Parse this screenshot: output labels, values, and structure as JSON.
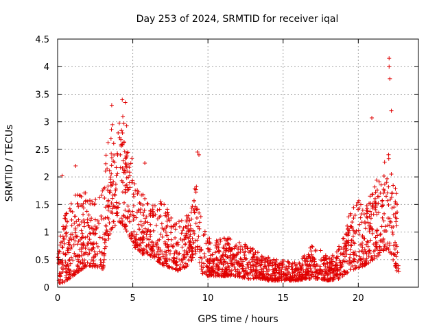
{
  "chart_data": {
    "type": "scatter",
    "title": "Day 253 of 2024, SRMTID for receiver iqal",
    "xlabel": "GPS time / hours",
    "ylabel": "SRMTID / TECUs",
    "xlim": [
      0,
      24
    ],
    "ylim": [
      0,
      4.5
    ],
    "xticks": [
      0,
      5,
      10,
      15,
      20
    ],
    "xtick_labels": [
      "0",
      "5",
      "10",
      "15",
      "20"
    ],
    "yticks": [
      0,
      0.5,
      1,
      1.5,
      2,
      2.5,
      3,
      3.5,
      4,
      4.5
    ],
    "ytick_labels": [
      "0",
      "0.5",
      "1",
      "1.5",
      "2",
      "2.5",
      "3",
      "3.5",
      "4",
      "4.5"
    ],
    "grid": true,
    "marker": "+",
    "color": "#e00000",
    "data_extent_hours": [
      0,
      22.7
    ],
    "notable_points": [
      {
        "x": 22.05,
        "y": 4.15
      },
      {
        "x": 22.05,
        "y": 4.0
      },
      {
        "x": 22.1,
        "y": 3.78
      },
      {
        "x": 4.3,
        "y": 3.4
      },
      {
        "x": 4.5,
        "y": 3.35
      },
      {
        "x": 3.6,
        "y": 3.3
      },
      {
        "x": 20.9,
        "y": 3.07
      },
      {
        "x": 22.2,
        "y": 3.2
      },
      {
        "x": 9.3,
        "y": 2.45
      },
      {
        "x": 9.4,
        "y": 2.4
      },
      {
        "x": 1.2,
        "y": 2.2
      },
      {
        "x": 0.3,
        "y": 2.02
      },
      {
        "x": 5.8,
        "y": 2.25
      }
    ],
    "envelope": {
      "hours": [
        0.0,
        0.5,
        1.0,
        1.5,
        2.0,
        2.5,
        3.0,
        3.3,
        3.6,
        4.0,
        4.4,
        4.8,
        5.2,
        5.6,
        6.0,
        6.5,
        7.0,
        7.5,
        8.0,
        8.5,
        9.0,
        9.3,
        9.6,
        10.0,
        10.5,
        11.0,
        11.5,
        12.0,
        12.5,
        13.0,
        13.5,
        14.0,
        14.5,
        15.0,
        15.5,
        16.0,
        16.5,
        17.0,
        17.5,
        18.0,
        18.5,
        19.0,
        19.5,
        20.0,
        20.5,
        21.0,
        21.5,
        22.0,
        22.3,
        22.7
      ],
      "low": [
        0.05,
        0.1,
        0.2,
        0.3,
        0.4,
        0.35,
        0.3,
        0.8,
        1.0,
        1.2,
        1.1,
        0.9,
        0.7,
        0.6,
        0.6,
        0.5,
        0.4,
        0.35,
        0.3,
        0.35,
        0.5,
        0.6,
        0.25,
        0.2,
        0.2,
        0.2,
        0.2,
        0.2,
        0.15,
        0.15,
        0.15,
        0.12,
        0.12,
        0.12,
        0.12,
        0.12,
        0.15,
        0.15,
        0.15,
        0.12,
        0.12,
        0.2,
        0.3,
        0.35,
        0.4,
        0.5,
        0.6,
        0.7,
        0.5,
        0.2
      ],
      "high": [
        0.8,
        1.3,
        1.6,
        1.8,
        1.7,
        1.6,
        1.9,
        2.6,
        3.0,
        2.9,
        3.3,
        2.6,
        1.9,
        1.7,
        1.6,
        1.5,
        1.6,
        1.3,
        1.2,
        1.3,
        1.5,
        2.3,
        1.2,
        0.9,
        0.85,
        0.9,
        0.9,
        0.85,
        0.8,
        0.7,
        0.6,
        0.55,
        0.5,
        0.5,
        0.45,
        0.45,
        0.6,
        0.8,
        0.7,
        0.55,
        0.6,
        1.0,
        1.4,
        1.6,
        1.5,
        1.9,
        2.0,
        2.6,
        2.3,
        1.5
      ]
    }
  }
}
